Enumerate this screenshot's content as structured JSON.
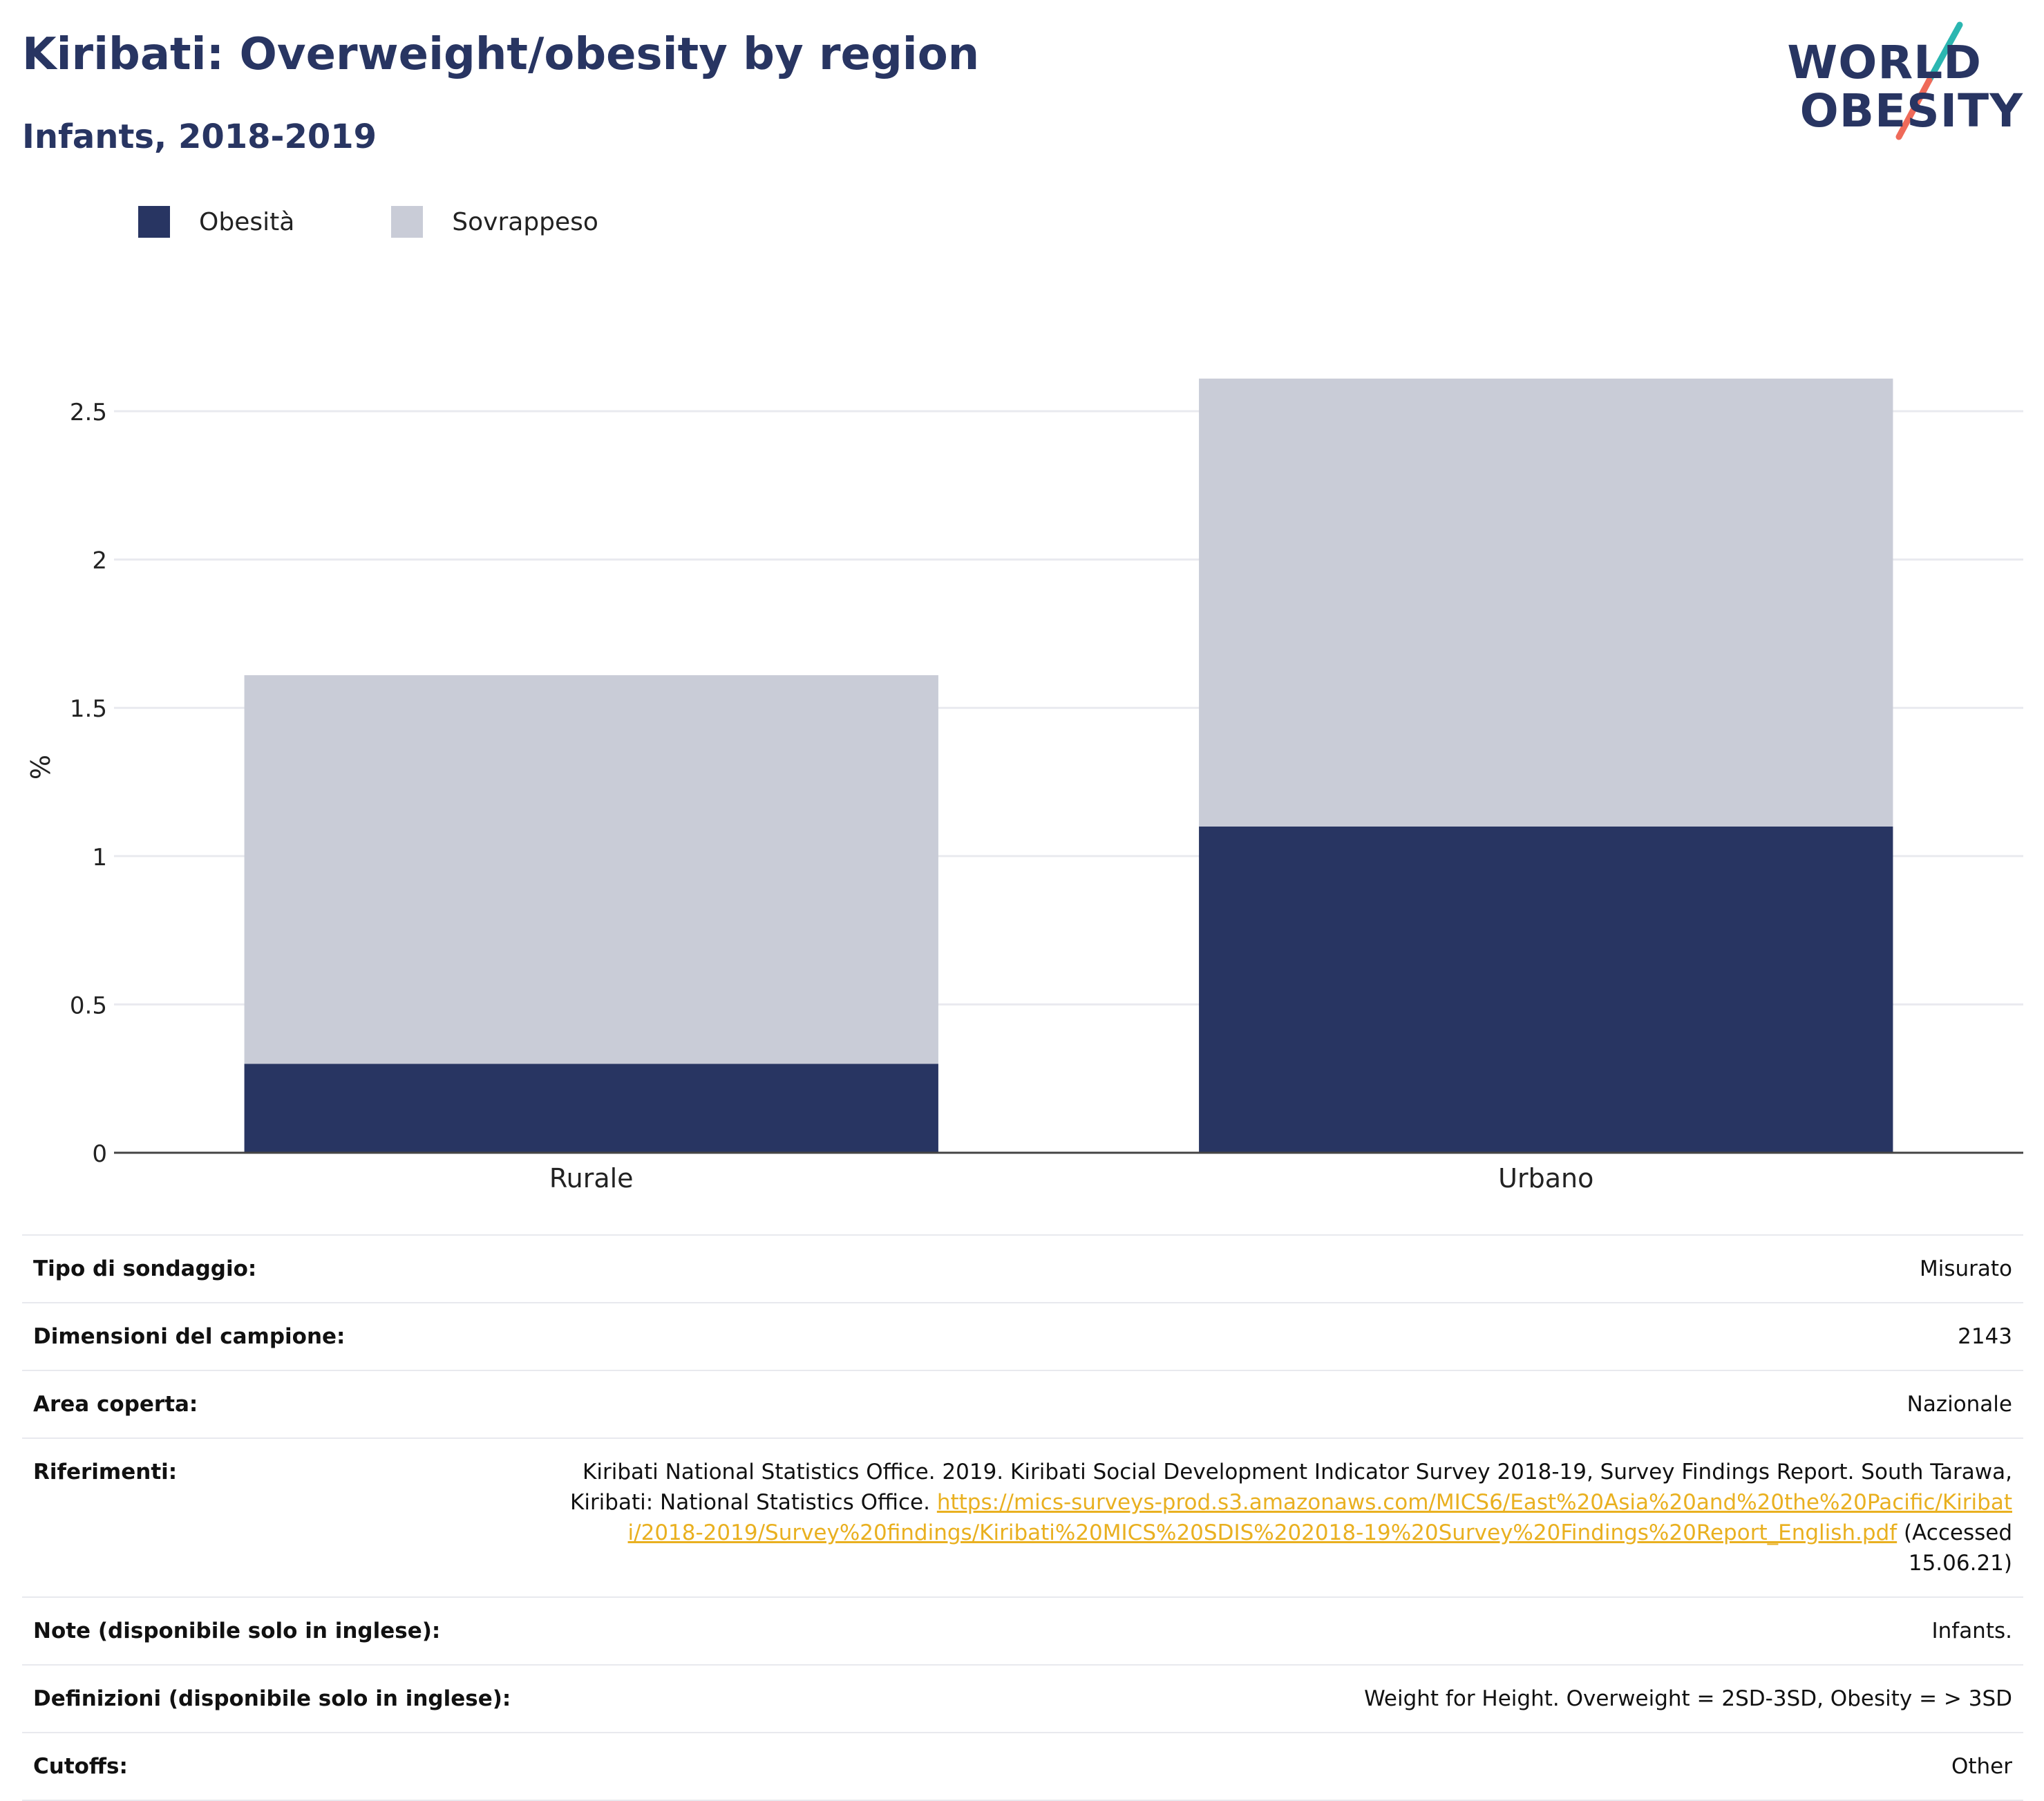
{
  "header": {
    "title": "Kiribati: Overweight/obesity by region",
    "subtitle": "Infants, 2018-2019"
  },
  "logo": {
    "line1": "WORLD",
    "line2": "OBESITY"
  },
  "colors": {
    "obesity": "#283562",
    "overweight": "#c9ccd7",
    "link": "#e9b020",
    "brand_accent1": "#2bb6b1",
    "brand_accent2": "#ef6a59"
  },
  "legend": [
    {
      "label": "Obesità",
      "color": "#283562"
    },
    {
      "label": "Sovrappeso",
      "color": "#c9ccd7"
    }
  ],
  "chart_data": {
    "type": "bar",
    "stacked": true,
    "categories": [
      "Rurale",
      "Urbano"
    ],
    "series": [
      {
        "name": "Obesità",
        "values": [
          0.3,
          1.1
        ]
      },
      {
        "name": "Sovrappeso",
        "values": [
          1.31,
          1.51
        ]
      }
    ],
    "ylabel": "%",
    "ylim": [
      0,
      2.65
    ],
    "yticks": [
      0,
      0.5,
      1,
      1.5,
      2,
      2.5
    ],
    "grid": true,
    "legend_position": "top-left"
  },
  "info": {
    "survey_type": {
      "label": "Tipo di sondaggio:",
      "value": "Misurato"
    },
    "sample_size": {
      "label": "Dimensioni del campione:",
      "value": "2143"
    },
    "area": {
      "label": "Area coperta:",
      "value": "Nazionale"
    },
    "references": {
      "label": "Riferimenti:",
      "text": "Kiribati National Statistics Office. 2019. Kiribati Social Development Indicator Survey 2018-19, Survey Findings Report. South Tarawa, Kiribati: National Statistics Office. ",
      "link": "https://mics-surveys-prod.s3.amazonaws.com/MICS6/East%20Asia%20and%20the%20Pacific/Kiribati/2018-2019/Survey%20findings/Kiribati%20MICS%20SDIS%202018-19%20Survey%20Findings%20Report_English.pdf",
      "suffix": " (Accessed 15.06.21)"
    },
    "notes": {
      "label": "Note (disponibile solo in inglese):",
      "value": "Infants."
    },
    "definitions": {
      "label": "Definizioni (disponibile solo in inglese):",
      "value": "Weight for Height. Overweight = 2SD-3SD, Obesity = > 3SD"
    },
    "cutoffs": {
      "label": "Cutoffs:",
      "value": "Other"
    }
  }
}
